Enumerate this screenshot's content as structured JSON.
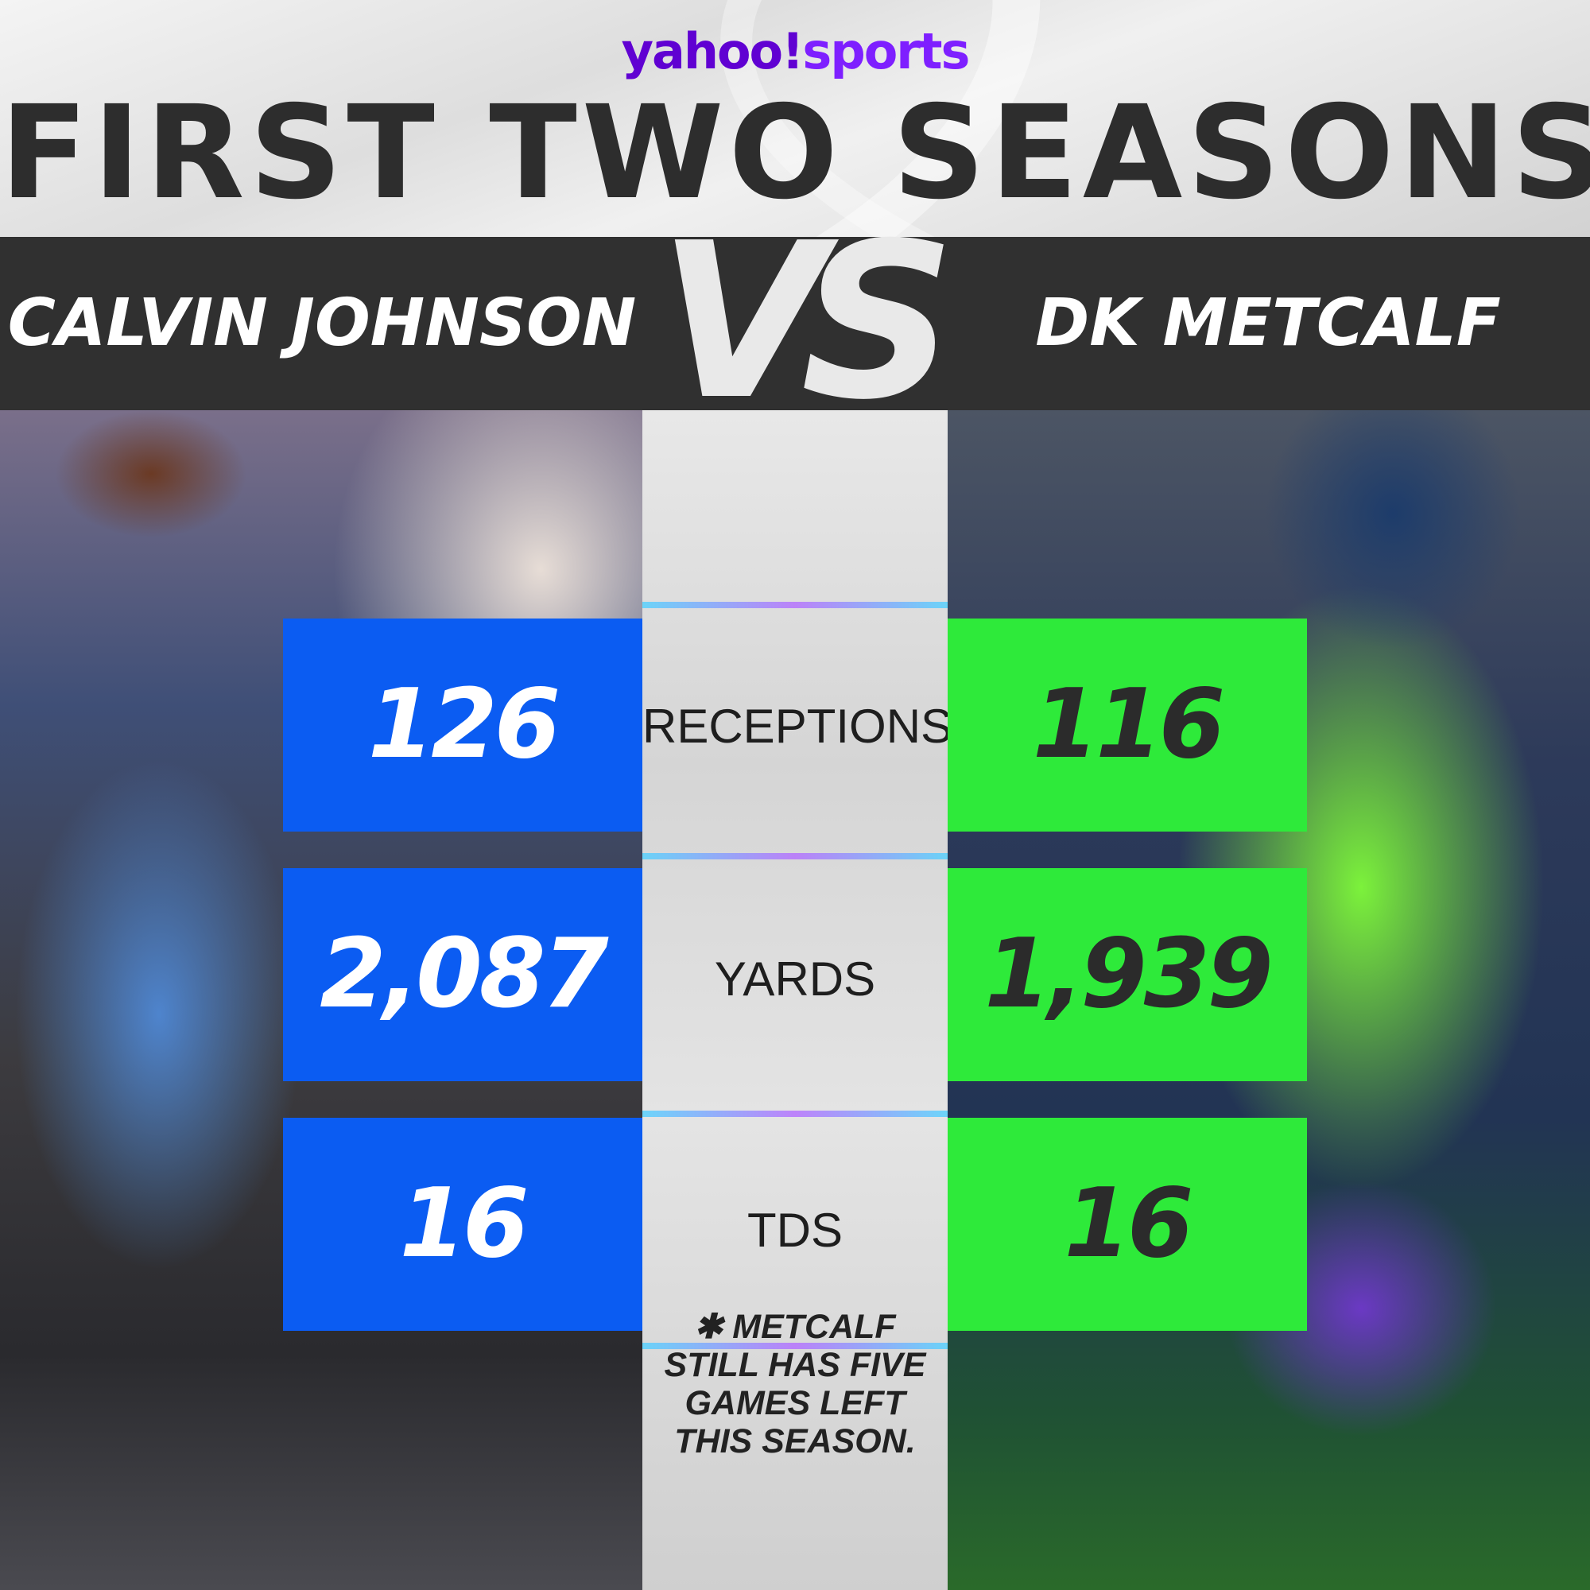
{
  "header": {
    "brand_primary": "yahoo!",
    "brand_secondary": "sports",
    "title": "FIRST TWO SEASONS"
  },
  "players": {
    "left_name": "CALVIN JOHNSON",
    "vs_label": "VS",
    "right_name": "DK METCALF"
  },
  "stats": [
    {
      "label": "RECEPTIONS",
      "left": "126",
      "right": "116"
    },
    {
      "label": "YARDS",
      "left": "2,087",
      "right": "1,939"
    },
    {
      "label": "TDS",
      "left": "16",
      "right": "16"
    }
  ],
  "footnote": "✱ METCALF STILL HAS FIVE GAMES LEFT THIS SEASON.",
  "colors": {
    "brand_purple": "#6001d2",
    "left_box": "#0b5cf2",
    "right_box": "#2eea3a",
    "band": "#303030"
  }
}
